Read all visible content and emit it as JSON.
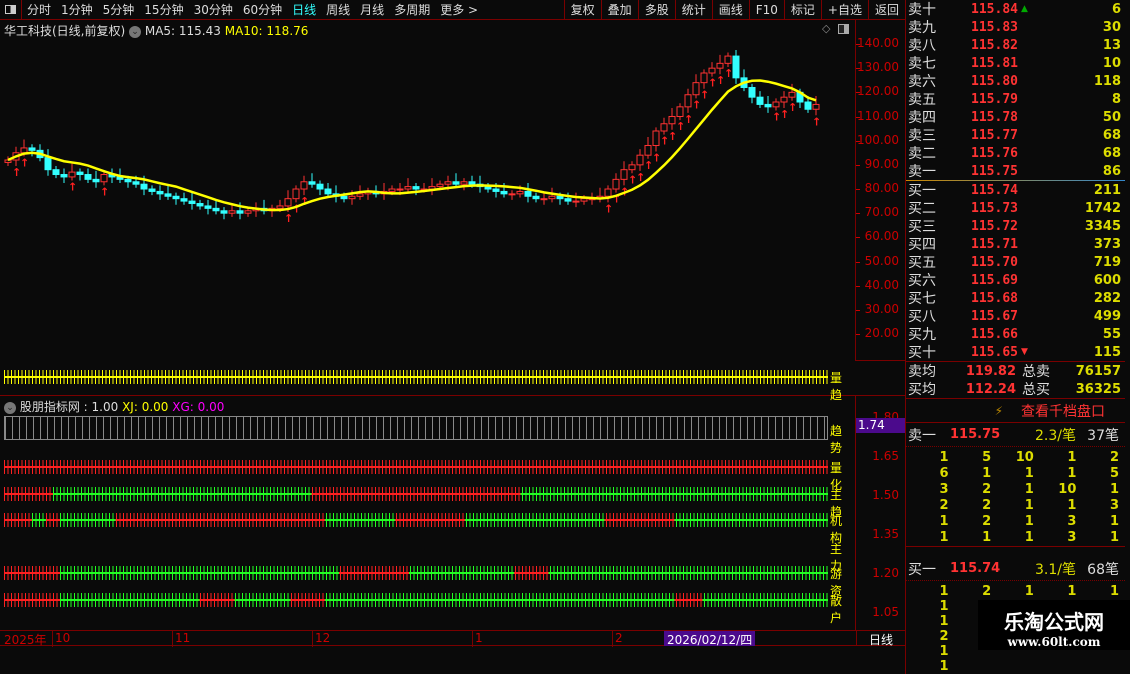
{
  "toolbar": {
    "periods": [
      "分时",
      "1分钟",
      "5分钟",
      "15分钟",
      "30分钟",
      "60分钟",
      "日线",
      "周线",
      "月线",
      "多周期",
      "更多 >"
    ],
    "active": "日线",
    "tools": [
      "复权",
      "叠加",
      "多股",
      "统计",
      "画线",
      "F10",
      "标记",
      "+自选",
      "返回"
    ]
  },
  "header": {
    "title": "华工科技(日线,前复权)",
    "ma5": "MA5: 115.43",
    "ma10": "MA10: 118.76"
  },
  "price_axis": [
    "140.00",
    "130.00",
    "120.00",
    "110.00",
    "100.00",
    "90.00",
    "80.00",
    "70.00",
    "60.00",
    "50.00",
    "40.00",
    "30.00",
    "20.00"
  ],
  "closes": [
    92,
    95,
    97,
    96,
    93,
    88,
    86,
    85,
    87,
    86,
    84,
    83,
    86,
    85,
    84,
    83,
    82,
    80,
    79,
    78,
    77,
    76,
    75,
    74,
    73,
    72,
    71,
    70,
    71,
    70,
    71,
    72,
    71,
    72,
    73,
    76,
    80,
    83,
    82,
    80,
    78,
    77,
    76,
    77,
    78,
    79,
    78,
    79,
    80,
    80,
    81,
    80,
    80,
    81,
    82,
    83,
    82,
    83,
    82,
    81,
    80,
    79,
    78,
    78,
    79,
    77,
    76,
    76,
    77,
    76,
    75,
    75,
    76,
    76,
    77,
    80,
    84,
    88,
    90,
    94,
    98,
    104,
    107,
    110,
    114,
    119,
    124,
    128,
    130,
    132,
    135,
    126,
    122,
    118,
    115,
    114,
    116,
    118,
    120,
    116,
    113,
    115
  ],
  "colors": {
    "up": "#ff3232",
    "down": "#3ff",
    "ma": "#ffff00",
    "buy_arrow": "#ff2020"
  },
  "indicator": {
    "name": "股朋指标网",
    "v1": ": 1.00",
    "xj": "XJ: 0.00",
    "xg": "XG: 0.00",
    "current": "1.74",
    "axis": [
      "1.80",
      "1.65",
      "1.50",
      "1.35",
      "1.20",
      "1.05"
    ],
    "rows": [
      {
        "label": "量趋",
        "segments": [
          [
            "y",
            118
          ]
        ]
      },
      {
        "label": "趋势",
        "segments": [
          [
            "g",
            118
          ]
        ]
      },
      {
        "label": "量化",
        "segments": [
          [
            "r",
            118
          ]
        ]
      },
      {
        "label": "主趋",
        "segments": [
          [
            "r",
            7
          ],
          [
            "g",
            37
          ],
          [
            "r",
            30
          ],
          [
            "g",
            44
          ]
        ]
      },
      {
        "label": "机构",
        "segments": [
          [
            "r",
            4
          ],
          [
            "g",
            2
          ],
          [
            "r",
            2
          ],
          [
            "g",
            8
          ],
          [
            "r",
            30
          ],
          [
            "g",
            10
          ],
          [
            "r",
            10
          ],
          [
            "g",
            20
          ],
          [
            "r",
            10
          ],
          [
            "g",
            22
          ]
        ]
      },
      {
        "label": "主力",
        "segments": []
      },
      {
        "label": "游资",
        "segments": [
          [
            "r",
            8
          ],
          [
            "g",
            40
          ],
          [
            "r",
            10
          ],
          [
            "g",
            15
          ],
          [
            "r",
            5
          ],
          [
            "g",
            40
          ]
        ]
      },
      {
        "label": "散户",
        "segments": [
          [
            "r",
            8
          ],
          [
            "g",
            20
          ],
          [
            "r",
            5
          ],
          [
            "g",
            8
          ],
          [
            "r",
            5
          ],
          [
            "g",
            50
          ],
          [
            "r",
            4
          ],
          [
            "g",
            18
          ]
        ]
      }
    ]
  },
  "timeline": {
    "year": "2025年",
    "months": [
      "10",
      "11",
      "12",
      "1",
      "2"
    ],
    "cursor_date": "2026/02/12/四",
    "period": "日线"
  },
  "orderbook": {
    "asks": [
      [
        "卖十",
        "115.84",
        "6"
      ],
      [
        "卖九",
        "115.83",
        "30"
      ],
      [
        "卖八",
        "115.82",
        "13"
      ],
      [
        "卖七",
        "115.81",
        "10"
      ],
      [
        "卖六",
        "115.80",
        "118"
      ],
      [
        "卖五",
        "115.79",
        "8"
      ],
      [
        "卖四",
        "115.78",
        "50"
      ],
      [
        "卖三",
        "115.77",
        "68"
      ],
      [
        "卖二",
        "115.76",
        "68"
      ],
      [
        "卖一",
        "115.75",
        "86"
      ]
    ],
    "bids": [
      [
        "买一",
        "115.74",
        "211"
      ],
      [
        "买二",
        "115.73",
        "1742"
      ],
      [
        "买三",
        "115.72",
        "3345"
      ],
      [
        "买四",
        "115.71",
        "373"
      ],
      [
        "买五",
        "115.70",
        "719"
      ],
      [
        "买六",
        "115.69",
        "600"
      ],
      [
        "买七",
        "115.68",
        "282"
      ],
      [
        "买八",
        "115.67",
        "499"
      ],
      [
        "买九",
        "115.66",
        "55"
      ],
      [
        "买十",
        "115.65",
        "115"
      ]
    ],
    "avg_ask_label": "卖均",
    "avg_ask": "119.82",
    "total_ask_label": "总卖",
    "total_ask": "76157",
    "avg_bid_label": "买均",
    "avg_bid": "112.24",
    "total_bid_label": "总买",
    "total_bid": "36325",
    "thousand_link": "查看千档盘口",
    "ask1": {
      "label": "卖一",
      "price": "115.75",
      "per": "2.3/笔",
      "count": "37笔",
      "orders": [
        "1",
        "5",
        "10",
        "1",
        "2",
        "6",
        "1",
        "1",
        "1",
        "5",
        "3",
        "2",
        "1",
        "10",
        "1",
        "2",
        "2",
        "1",
        "1",
        "3",
        "1",
        "2",
        "1",
        "3",
        "1",
        "1",
        "1",
        "1",
        "3",
        "1"
      ]
    },
    "bid1": {
      "label": "买一",
      "price": "115.74",
      "per": "3.1/笔",
      "count": "68笔",
      "orders": [
        "1",
        "2",
        "1",
        "1",
        "1",
        "1",
        "3",
        "4",
        "1",
        "5",
        "1",
        "2",
        "50",
        "10",
        "2",
        "2",
        "",
        "",
        "",
        "",
        "1",
        "",
        "",
        "",
        "",
        "1",
        "",
        "",
        "",
        ""
      ]
    }
  },
  "watermark": {
    "title": "乐淘公式网",
    "url": "www.60lt.com"
  }
}
